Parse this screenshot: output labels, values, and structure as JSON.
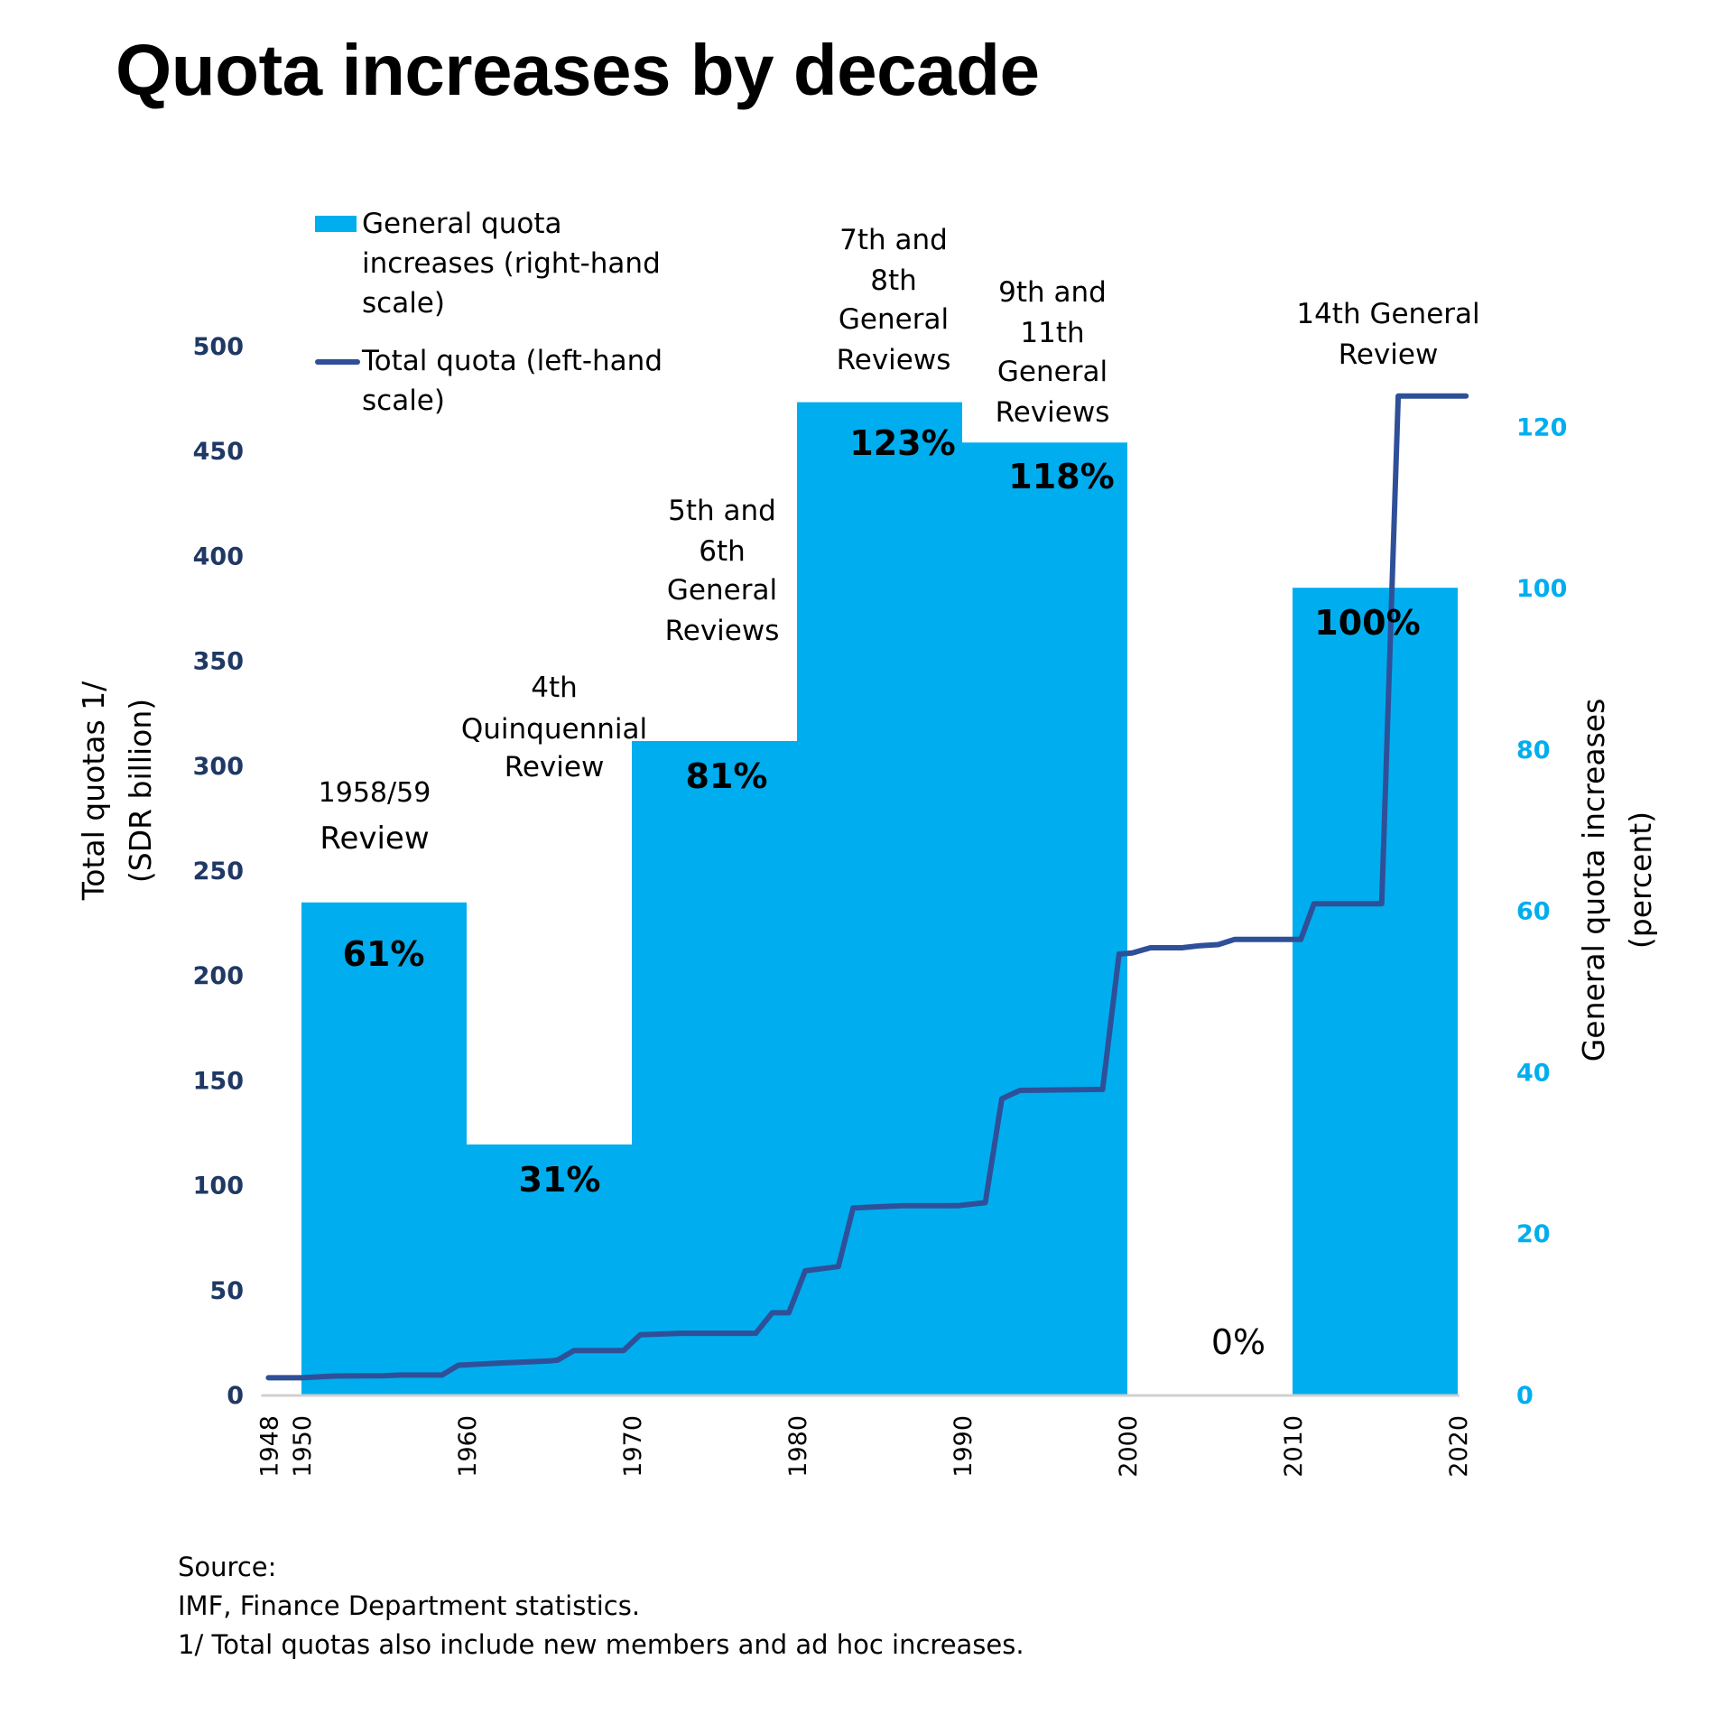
{
  "title": "Quota increases by decade",
  "legend": [
    {
      "label": "General quota increases (right-hand scale)",
      "kind": "bar",
      "color": "#00AEEF"
    },
    {
      "label": "Total quota (left-hand scale)",
      "kind": "line",
      "color": "#2F5098"
    }
  ],
  "axes": {
    "left_title_line1": "Total quotas  1/",
    "left_title_line2": "(SDR billion)",
    "right_title_line1": "General quota increases",
    "right_title_line2": "(percent)"
  },
  "footer": {
    "line1": "Source:",
    "line2": "IMF, Finance Department statistics.",
    "line3": "1/ Total quotas also include new members and ad hoc increases."
  },
  "chart_data": {
    "type": "bar",
    "title": "Quota increases by decade",
    "xlabel": "",
    "ylabel": "Total quotas 1/ (SDR billion)",
    "y2label": "General quota increases (percent)",
    "xlim": [
      1948,
      2020
    ],
    "ylim": [
      0,
      500
    ],
    "y2lim": [
      0,
      130
    ],
    "grid": false,
    "legend_position": "top-left",
    "x_ticks": [
      "1948",
      "1950",
      "1960",
      "1970",
      "1980",
      "1990",
      "2000",
      "2010",
      "2020"
    ],
    "x_tick_values": [
      1948,
      1950,
      1960,
      1970,
      1980,
      1990,
      2000,
      2010,
      2020
    ],
    "y_ticks": [
      0,
      50,
      100,
      150,
      200,
      250,
      300,
      350,
      400,
      450,
      500
    ],
    "y2_ticks": [
      0,
      20,
      40,
      60,
      80,
      100,
      120
    ],
    "colors": {
      "bar": "#00AEEF",
      "line": "#2F5098",
      "left_axis": "#1F3864",
      "right_axis": "#00AEEF"
    },
    "bars": {
      "name": "General quota increases (right-hand scale)",
      "axis": "right",
      "categories": [
        "1950s",
        "1960s",
        "1970s",
        "1980s",
        "1990s",
        "2000s",
        "2010s"
      ],
      "start_years": [
        1950,
        1960,
        1970,
        1980,
        1990,
        2000,
        2010
      ],
      "end_years": [
        1960,
        1970,
        1980,
        1990,
        2000,
        2010,
        2020
      ],
      "values": [
        61,
        31,
        81,
        123,
        118,
        0,
        100
      ],
      "value_labels": [
        "61%",
        "31%",
        "81%",
        "123%",
        "118%",
        "0%",
        "100%"
      ],
      "review_labels": [
        [
          "1958/59",
          "Review"
        ],
        [
          "4th",
          "Quinquennial",
          "Review"
        ],
        [
          "5th and",
          "6th",
          "General",
          "Reviews"
        ],
        [
          "7th and",
          "8th",
          "General",
          "Reviews"
        ],
        [
          "9th and",
          "11th",
          "General",
          "Reviews"
        ],
        [],
        [
          "14th General",
          "Review"
        ]
      ]
    },
    "series": [
      {
        "name": "Total quota (left-hand scale)",
        "axis": "left",
        "x": [
          1948,
          1950,
          1952,
          1955,
          1956,
          1958.5,
          1959.5,
          1962,
          1965,
          1965.5,
          1966.5,
          1969.5,
          1970.5,
          1973,
          1977.5,
          1978.5,
          1979.5,
          1980.5,
          1982.5,
          1983.4,
          1986.4,
          1989.7,
          1991.4,
          1992.4,
          1993.5,
          1998.5,
          1999.5,
          2000.3,
          2001.4,
          2003.3,
          2004.4,
          2005.5,
          2006.5,
          2010.5,
          2011.3,
          2015.4,
          2016.4,
          2020.5
        ],
        "y": [
          8,
          8,
          8.8,
          9,
          9.3,
          9.3,
          14,
          15,
          16,
          16.4,
          21,
          21,
          28.5,
          29.2,
          29.2,
          39,
          39,
          59,
          61,
          89,
          90,
          90,
          91.5,
          141,
          145,
          145.5,
          210,
          210.5,
          213,
          213,
          214,
          214.5,
          217,
          217,
          234,
          234,
          476,
          476
        ]
      }
    ]
  }
}
